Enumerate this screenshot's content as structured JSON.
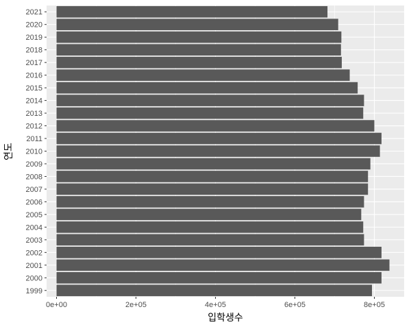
{
  "chart_data": {
    "type": "bar",
    "orientation": "horizontal",
    "xlabel": "입학생수",
    "ylabel": "연도",
    "categories": [
      "1999",
      "2000",
      "2001",
      "2002",
      "2003",
      "2004",
      "2005",
      "2006",
      "2007",
      "2008",
      "2009",
      "2010",
      "2011",
      "2012",
      "2013",
      "2014",
      "2015",
      "2016",
      "2017",
      "2018",
      "2019",
      "2020",
      "2021"
    ],
    "values": [
      794000,
      818000,
      838000,
      818000,
      774000,
      772000,
      767000,
      774000,
      784000,
      784000,
      790000,
      814000,
      818000,
      800000,
      772000,
      774000,
      758000,
      738000,
      718000,
      716000,
      717000,
      709000,
      682000
    ],
    "xlim": [
      -25000,
      875000
    ],
    "xticks": [
      0,
      200000,
      400000,
      600000,
      800000
    ],
    "xtick_labels": [
      "0e+00",
      "2e+05",
      "4e+05",
      "6e+05",
      "8e+05"
    ],
    "grid": true,
    "bar_color": "#595959",
    "panel_color": "#ebebeb",
    "grid_color": "#ffffff"
  }
}
